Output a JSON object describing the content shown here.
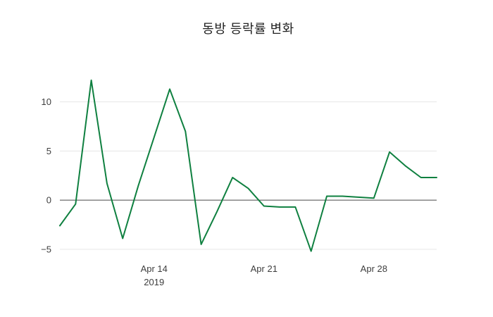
{
  "chart_data": {
    "type": "line",
    "title": "동방 등락률 변화",
    "xlabel": "",
    "ylabel": "",
    "ylim": [
      -5.8,
      13.2
    ],
    "grid": true,
    "zero_line": true,
    "legend": "none",
    "background": "#ffffff",
    "colors": {
      "line": "#0f8040",
      "grid": "#e6e6e6",
      "zero_line": "#4d4d4d",
      "tick_text": "#3d3d3d",
      "title_text": "#222222"
    },
    "series": [
      {
        "name": "등락률",
        "x": [
          "2019-04-08",
          "2019-04-09",
          "2019-04-10",
          "2019-04-11",
          "2019-04-12",
          "2019-04-13",
          "2019-04-14",
          "2019-04-15",
          "2019-04-16",
          "2019-04-17",
          "2019-04-18",
          "2019-04-19",
          "2019-04-20",
          "2019-04-21",
          "2019-04-22",
          "2019-04-23",
          "2019-04-24",
          "2019-04-25",
          "2019-04-26",
          "2019-04-27",
          "2019-04-28",
          "2019-04-29",
          "2019-04-30",
          "2019-05-01",
          "2019-05-02"
        ],
        "values": [
          -2.6,
          -0.4,
          12.2,
          1.7,
          -3.9,
          1.5,
          6.4,
          11.3,
          7.0,
          -4.5,
          -1.2,
          2.3,
          1.2,
          -0.6,
          -0.7,
          -0.7,
          -5.2,
          0.4,
          0.4,
          0.3,
          0.2,
          4.9,
          3.5,
          2.3,
          2.3
        ]
      }
    ],
    "yticks": [
      {
        "value": -5,
        "label": "−5"
      },
      {
        "value": 0,
        "label": "0"
      },
      {
        "value": 5,
        "label": "5"
      },
      {
        "value": 10,
        "label": "10"
      }
    ],
    "xticks": [
      {
        "index": 6,
        "label": "Apr 14",
        "sublabel": "2019"
      },
      {
        "index": 13,
        "label": "Apr 21",
        "sublabel": ""
      },
      {
        "index": 20,
        "label": "Apr 28",
        "sublabel": ""
      }
    ]
  }
}
